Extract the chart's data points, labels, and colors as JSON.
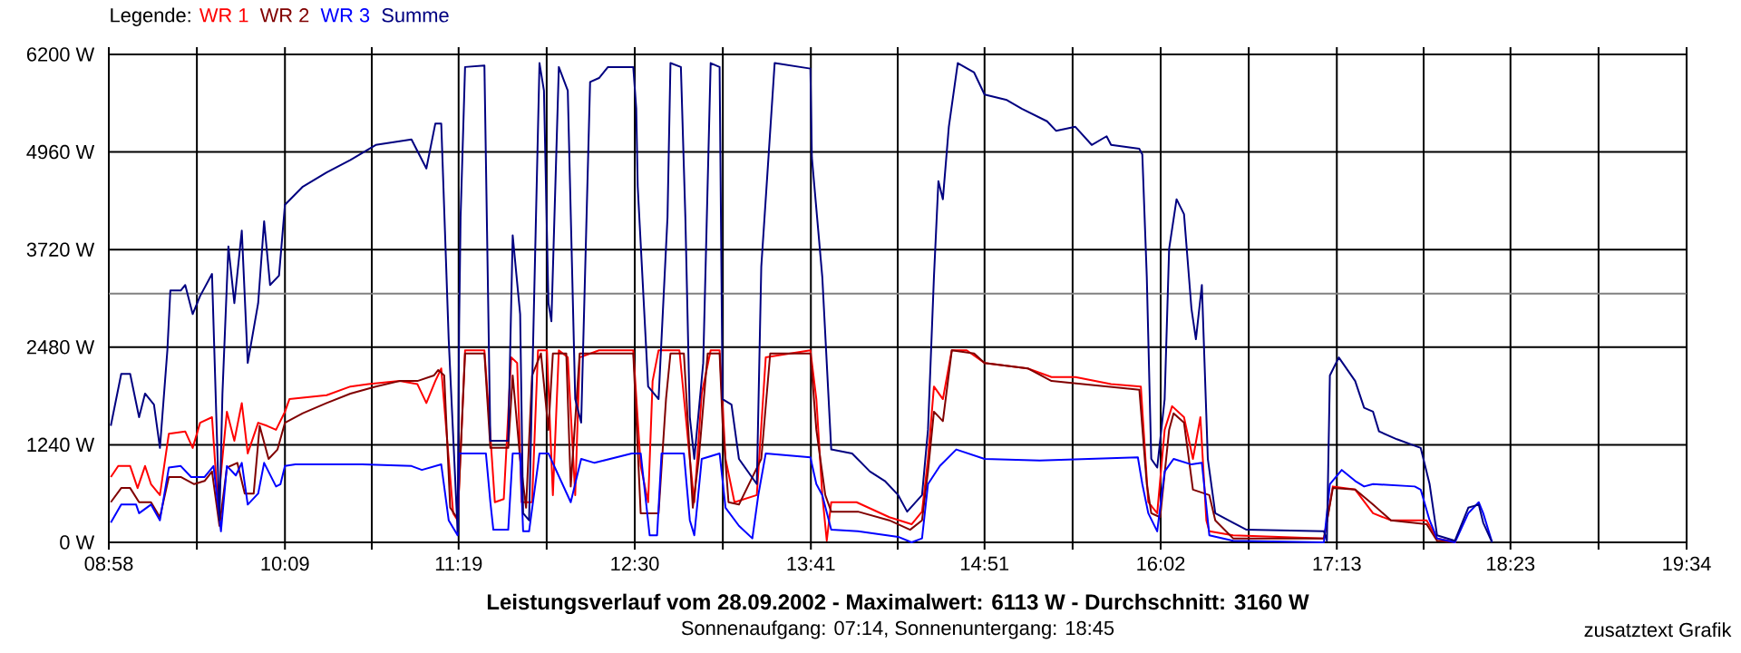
{
  "chart_data": {
    "type": "line",
    "title": "Leistungsverlauf vom 28.09.2002 - Maximalwert: 6113 W - Durchschnitt: 3160 W",
    "subtitle": "Sonnenaufgang: 07:14, Sonnenuntergang: 18:45",
    "annotations": [
      "zusatztext Grafik"
    ],
    "legend_title": "Legende:",
    "legend": "top left",
    "grid": true,
    "xlim": [
      8.9667,
      19.5667
    ],
    "ylim": [
      0,
      6200
    ],
    "xticks": [
      {
        "value": 8.9667,
        "label": "08:58"
      },
      {
        "value": 9.5583,
        "label": null
      },
      {
        "value": 10.15,
        "label": "10:09"
      },
      {
        "value": 10.7333,
        "label": null
      },
      {
        "value": 11.3167,
        "label": "11:19"
      },
      {
        "value": 11.9083,
        "label": null
      },
      {
        "value": 12.5,
        "label": "12:30"
      },
      {
        "value": 13.0917,
        "label": null
      },
      {
        "value": 13.6833,
        "label": "13:41"
      },
      {
        "value": 14.2667,
        "label": null
      },
      {
        "value": 14.85,
        "label": "14:51"
      },
      {
        "value": 15.4417,
        "label": null
      },
      {
        "value": 16.0333,
        "label": "16:02"
      },
      {
        "value": 16.625,
        "label": null
      },
      {
        "value": 17.2167,
        "label": "17:13"
      },
      {
        "value": 17.8,
        "label": null
      },
      {
        "value": 18.3833,
        "label": "18:23"
      },
      {
        "value": 18.975,
        "label": null
      },
      {
        "value": 19.5667,
        "label": "19:34"
      }
    ],
    "yticks": [
      {
        "value": 0,
        "label": "0 W"
      },
      {
        "value": 1240,
        "label": "1240 W"
      },
      {
        "value": 2480,
        "label": "2480 W"
      },
      {
        "value": 3720,
        "label": "3720 W"
      },
      {
        "value": 4960,
        "label": "4960 W"
      },
      {
        "value": 6200,
        "label": "6200 W"
      }
    ],
    "ref_lines": [
      {
        "axis": "y",
        "value": 3160,
        "color": "#808080"
      }
    ],
    "series": [
      {
        "name": "WR 1",
        "color": "#ff0000",
        "x": [
          8.98,
          9.03,
          9.11,
          9.16,
          9.21,
          9.25,
          9.31,
          9.37,
          9.48,
          9.53,
          9.58,
          9.66,
          9.7,
          9.76,
          9.81,
          9.86,
          9.9,
          9.97,
          10.03,
          10.09,
          10.15,
          10.18,
          10.43,
          10.59,
          10.71,
          10.92,
          11.04,
          11.1,
          11.16,
          11.2,
          11.25,
          11.28,
          11.31,
          11.36,
          11.49,
          11.53,
          11.56,
          11.62,
          11.67,
          11.71,
          11.74,
          11.81,
          11.85,
          11.91,
          11.95,
          11.99,
          12.05,
          12.1,
          12.13,
          12.26,
          12.49,
          12.54,
          12.59,
          12.62,
          12.66,
          12.8,
          12.87,
          12.9,
          12.95,
          13.01,
          13.07,
          13.11,
          13.17,
          13.32,
          13.38,
          13.68,
          13.72,
          13.76,
          13.79,
          13.82,
          13.99,
          14.21,
          14.36,
          14.43,
          14.47,
          14.51,
          14.57,
          14.63,
          14.73,
          14.85,
          15.14,
          15.3,
          15.46,
          15.7,
          15.9,
          15.95,
          16.01,
          16.06,
          16.11,
          16.19,
          16.25,
          16.3,
          16.34,
          16.36,
          16.52,
          17.13,
          17.19,
          17.34,
          17.46,
          17.58,
          17.82,
          17.89,
          18.02
        ],
        "values": [
          830,
          970,
          970,
          690,
          970,
          740,
          600,
          1380,
          1410,
          1200,
          1520,
          1590,
          480,
          1660,
          1290,
          1770,
          1130,
          1520,
          1480,
          1430,
          1660,
          1820,
          1870,
          1980,
          2010,
          2050,
          2010,
          1770,
          2050,
          2210,
          1060,
          370,
          280,
          2440,
          2440,
          1360,
          510,
          550,
          2350,
          2280,
          510,
          510,
          2440,
          2440,
          600,
          2440,
          2350,
          600,
          2350,
          2440,
          2440,
          970,
          510,
          2050,
          2440,
          2440,
          1060,
          510,
          1890,
          2440,
          2440,
          1060,
          510,
          600,
          2350,
          2440,
          1820,
          600,
          20,
          510,
          510,
          320,
          230,
          390,
          1060,
          1980,
          1820,
          2440,
          2440,
          2280,
          2210,
          2100,
          2100,
          2010,
          1980,
          510,
          370,
          1430,
          1730,
          1590,
          1060,
          1590,
          280,
          140,
          90,
          50,
          710,
          670,
          370,
          280,
          280,
          50,
          0
        ]
      },
      {
        "name": "WR 2",
        "color": "#800000",
        "x": [
          8.98,
          9.05,
          9.11,
          9.17,
          9.25,
          9.31,
          9.37,
          9.45,
          9.54,
          9.61,
          9.66,
          9.71,
          9.76,
          9.83,
          9.88,
          9.94,
          9.98,
          10.04,
          10.1,
          10.15,
          10.27,
          10.43,
          10.59,
          10.76,
          10.92,
          11.04,
          11.15,
          11.18,
          11.22,
          11.26,
          11.31,
          11.36,
          11.49,
          11.53,
          11.65,
          11.68,
          11.73,
          11.77,
          11.81,
          11.87,
          11.92,
          11.95,
          12.04,
          12.07,
          12.13,
          12.49,
          12.54,
          12.66,
          12.71,
          12.74,
          12.83,
          12.89,
          12.93,
          12.99,
          13.07,
          13.09,
          13.13,
          13.2,
          13.35,
          13.41,
          13.68,
          13.72,
          13.78,
          13.82,
          14.0,
          14.21,
          14.35,
          14.43,
          14.47,
          14.51,
          14.57,
          14.63,
          14.78,
          14.85,
          15.14,
          15.3,
          15.51,
          15.89,
          15.94,
          15.97,
          16.03,
          16.09,
          16.12,
          16.19,
          16.25,
          16.36,
          16.4,
          16.52,
          17.13,
          17.19,
          17.34,
          17.46,
          17.58,
          17.82,
          17.89,
          18.01
        ],
        "values": [
          510,
          690,
          690,
          510,
          510,
          320,
          830,
          830,
          740,
          780,
          900,
          210,
          950,
          1010,
          620,
          620,
          1480,
          1060,
          1180,
          1520,
          1640,
          1770,
          1890,
          1980,
          2050,
          2050,
          2120,
          2190,
          2120,
          440,
          300,
          2400,
          2400,
          1200,
          1200,
          2120,
          1060,
          440,
          2120,
          2400,
          1430,
          2400,
          2400,
          710,
          2400,
          2400,
          370,
          370,
          1820,
          2400,
          2400,
          440,
          1060,
          2400,
          2400,
          1520,
          510,
          480,
          1060,
          2400,
          2400,
          1430,
          600,
          390,
          390,
          280,
          160,
          280,
          900,
          1660,
          1540,
          2440,
          2400,
          2280,
          2210,
          2050,
          2010,
          1940,
          740,
          370,
          320,
          1430,
          1640,
          1520,
          670,
          600,
          280,
          50,
          50,
          690,
          670,
          480,
          280,
          230,
          20,
          0
        ]
      },
      {
        "name": "WR 3",
        "color": "#0000ff",
        "x": [
          8.98,
          9.05,
          9.15,
          9.17,
          9.25,
          9.31,
          9.37,
          9.45,
          9.52,
          9.61,
          9.67,
          9.72,
          9.76,
          9.82,
          9.86,
          9.9,
          9.97,
          10.01,
          10.09,
          10.12,
          10.15,
          10.22,
          10.67,
          11.0,
          11.07,
          11.2,
          11.25,
          11.31,
          11.32,
          11.5,
          11.53,
          11.55,
          11.65,
          11.68,
          11.73,
          11.75,
          11.79,
          11.86,
          11.92,
          12.07,
          12.14,
          12.23,
          12.48,
          12.54,
          12.6,
          12.65,
          12.68,
          12.83,
          12.87,
          12.9,
          12.95,
          13.07,
          13.11,
          13.2,
          13.29,
          13.33,
          13.38,
          13.68,
          13.72,
          13.76,
          13.82,
          14.0,
          14.27,
          14.36,
          14.43,
          14.47,
          14.55,
          14.66,
          14.85,
          15.22,
          15.88,
          15.91,
          15.95,
          16.01,
          16.06,
          16.12,
          16.24,
          16.31,
          16.36,
          16.52,
          17.13,
          17.17,
          17.25,
          17.34,
          17.4,
          17.46,
          17.74,
          17.78,
          17.84,
          17.89,
          18.01,
          18.1,
          18.17,
          18.2,
          18.26
        ],
        "values": [
          250,
          480,
          480,
          370,
          480,
          280,
          950,
          970,
          830,
          830,
          970,
          140,
          970,
          850,
          1010,
          480,
          620,
          1010,
          710,
          740,
          970,
          990,
          990,
          970,
          920,
          990,
          280,
          90,
          1130,
          1130,
          510,
          160,
          160,
          1130,
          1130,
          140,
          140,
          1130,
          1130,
          510,
          1060,
          1010,
          1130,
          1130,
          90,
          90,
          1130,
          1130,
          280,
          90,
          1060,
          1130,
          440,
          210,
          50,
          600,
          1130,
          1080,
          740,
          600,
          160,
          140,
          70,
          0,
          50,
          740,
          970,
          1180,
          1060,
          1040,
          1080,
          740,
          370,
          140,
          900,
          1060,
          990,
          1010,
          90,
          20,
          0,
          740,
          920,
          780,
          710,
          740,
          710,
          670,
          280,
          50,
          0,
          370,
          510,
          370,
          0
        ]
      },
      {
        "name": "Summe",
        "color": "#000080",
        "x": [
          8.98,
          9.05,
          9.11,
          9.17,
          9.21,
          9.27,
          9.31,
          9.36,
          9.38,
          9.45,
          9.48,
          9.53,
          9.58,
          9.66,
          9.71,
          9.73,
          9.77,
          9.81,
          9.86,
          9.9,
          9.97,
          10.01,
          10.05,
          10.11,
          10.15,
          10.27,
          10.43,
          10.59,
          10.76,
          11.0,
          11.1,
          11.16,
          11.2,
          11.25,
          11.31,
          11.32,
          11.33,
          11.36,
          11.49,
          11.53,
          11.65,
          11.68,
          11.73,
          11.75,
          11.79,
          11.86,
          11.89,
          11.92,
          11.94,
          11.99,
          12.05,
          12.1,
          12.14,
          12.2,
          12.26,
          12.32,
          12.49,
          12.51,
          12.52,
          12.59,
          12.66,
          12.72,
          12.74,
          12.81,
          12.84,
          12.87,
          12.9,
          12.96,
          13.01,
          13.07,
          13.09,
          13.15,
          13.2,
          13.32,
          13.35,
          13.44,
          13.68,
          13.69,
          13.76,
          13.82,
          13.96,
          14.08,
          14.18,
          14.27,
          14.33,
          14.43,
          14.47,
          14.51,
          14.54,
          14.57,
          14.61,
          14.67,
          14.78,
          14.85,
          15.0,
          15.1,
          15.27,
          15.33,
          15.46,
          15.57,
          15.67,
          15.7,
          15.89,
          15.91,
          15.94,
          15.97,
          16.01,
          16.06,
          16.09,
          16.14,
          16.19,
          16.24,
          16.27,
          16.31,
          16.35,
          16.4,
          16.52,
          16.61,
          17.13,
          17.15,
          17.17,
          17.23,
          17.34,
          17.4,
          17.46,
          17.5,
          17.62,
          17.78,
          17.84,
          17.89,
          18.01,
          18.1,
          18.17,
          18.2,
          18.26
        ],
        "values": [
          1480,
          2140,
          2140,
          1590,
          1890,
          1750,
          1200,
          2440,
          3200,
          3200,
          3270,
          2900,
          3130,
          3410,
          280,
          1890,
          3760,
          3040,
          3960,
          2280,
          3040,
          4080,
          3270,
          3390,
          4290,
          4520,
          4700,
          4860,
          5050,
          5120,
          4750,
          5320,
          5320,
          2580,
          140,
          2740,
          4130,
          6040,
          6060,
          1290,
          1290,
          3900,
          2900,
          370,
          280,
          6090,
          5740,
          3040,
          2810,
          6040,
          5740,
          1820,
          1520,
          5850,
          5900,
          6040,
          6040,
          5510,
          4520,
          1980,
          1820,
          4130,
          6090,
          6040,
          4130,
          1590,
          1060,
          2280,
          6090,
          6040,
          1820,
          1750,
          1060,
          740,
          3500,
          6090,
          6020,
          4890,
          3370,
          1180,
          1130,
          900,
          780,
          600,
          390,
          600,
          1430,
          3370,
          4590,
          4360,
          5280,
          6090,
          5970,
          5690,
          5620,
          5510,
          5350,
          5230,
          5280,
          5050,
          5160,
          5050,
          5000,
          4930,
          3370,
          1060,
          950,
          1820,
          3730,
          4360,
          4170,
          2970,
          2580,
          3270,
          1060,
          370,
          250,
          160,
          140,
          20,
          2120,
          2350,
          2050,
          1710,
          1660,
          1410,
          1310,
          1200,
          740,
          90,
          20,
          440,
          480,
          250,
          0
        ]
      }
    ]
  }
}
